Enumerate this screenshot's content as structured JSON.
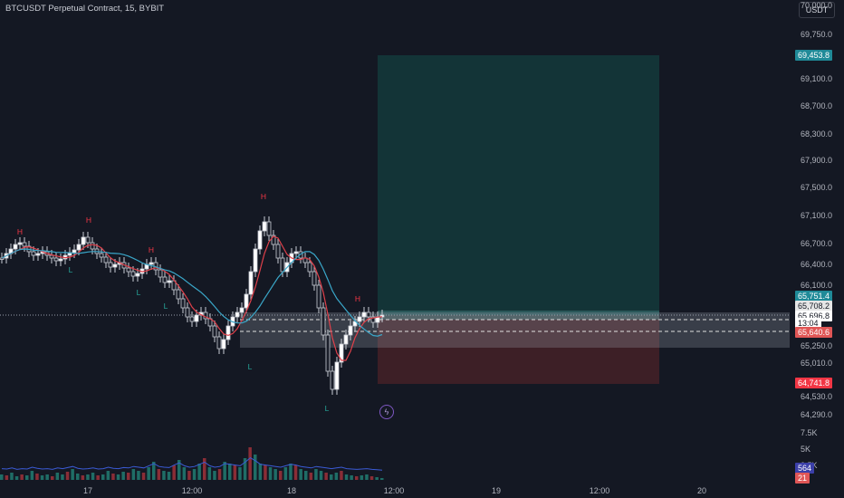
{
  "header": {
    "symbol_title": "BTCUSDT Perpetual Contract, 15, BYBIT",
    "currency_button": "USDT"
  },
  "price_axis": {
    "ticks": [
      "70,000.0",
      "69,750.0",
      "69,100.0",
      "68,700.0",
      "68,300.0",
      "67,900.0",
      "67,500.0",
      "67,100.0",
      "66,700.0",
      "66,400.0",
      "66,100.0",
      "65,250.0",
      "65,010.0",
      "64,530.0",
      "64,290.0"
    ],
    "tags": [
      {
        "label": "69,453.8",
        "color": "#1f8a98"
      },
      {
        "label": "65,751.4",
        "color": "#1f8a98"
      },
      {
        "label": "65,708.2",
        "color": "#e6e6e6",
        "text": "#141823"
      },
      {
        "label": "65,696.8",
        "color": "#ffffff",
        "text": "#141823"
      },
      {
        "label": "13:04",
        "color": "#ffffff",
        "text": "#141823"
      },
      {
        "label": "65,640.6",
        "color": "#e05656"
      },
      {
        "label": "64,741.8",
        "color": "#f23645"
      }
    ],
    "volume_ticks": [
      "7.5K",
      "5K",
      "2.5K"
    ],
    "volume_tags": [
      {
        "label": "564",
        "color": "#3b3fa8"
      },
      {
        "label": "21",
        "color": "#e05656"
      }
    ]
  },
  "time_axis": {
    "ticks": [
      "17",
      "12:00",
      "18",
      "12:00",
      "19",
      "12:00",
      "20"
    ]
  },
  "markers": {
    "high": "H",
    "low": "L"
  },
  "colors": {
    "up": "#ffffff",
    "down": "#ffffff",
    "ema_red": "#e0404a",
    "ema_cyan": "#3aa7c9",
    "profit_zone": "#133437",
    "loss_zone": "#3d1f26"
  }
}
